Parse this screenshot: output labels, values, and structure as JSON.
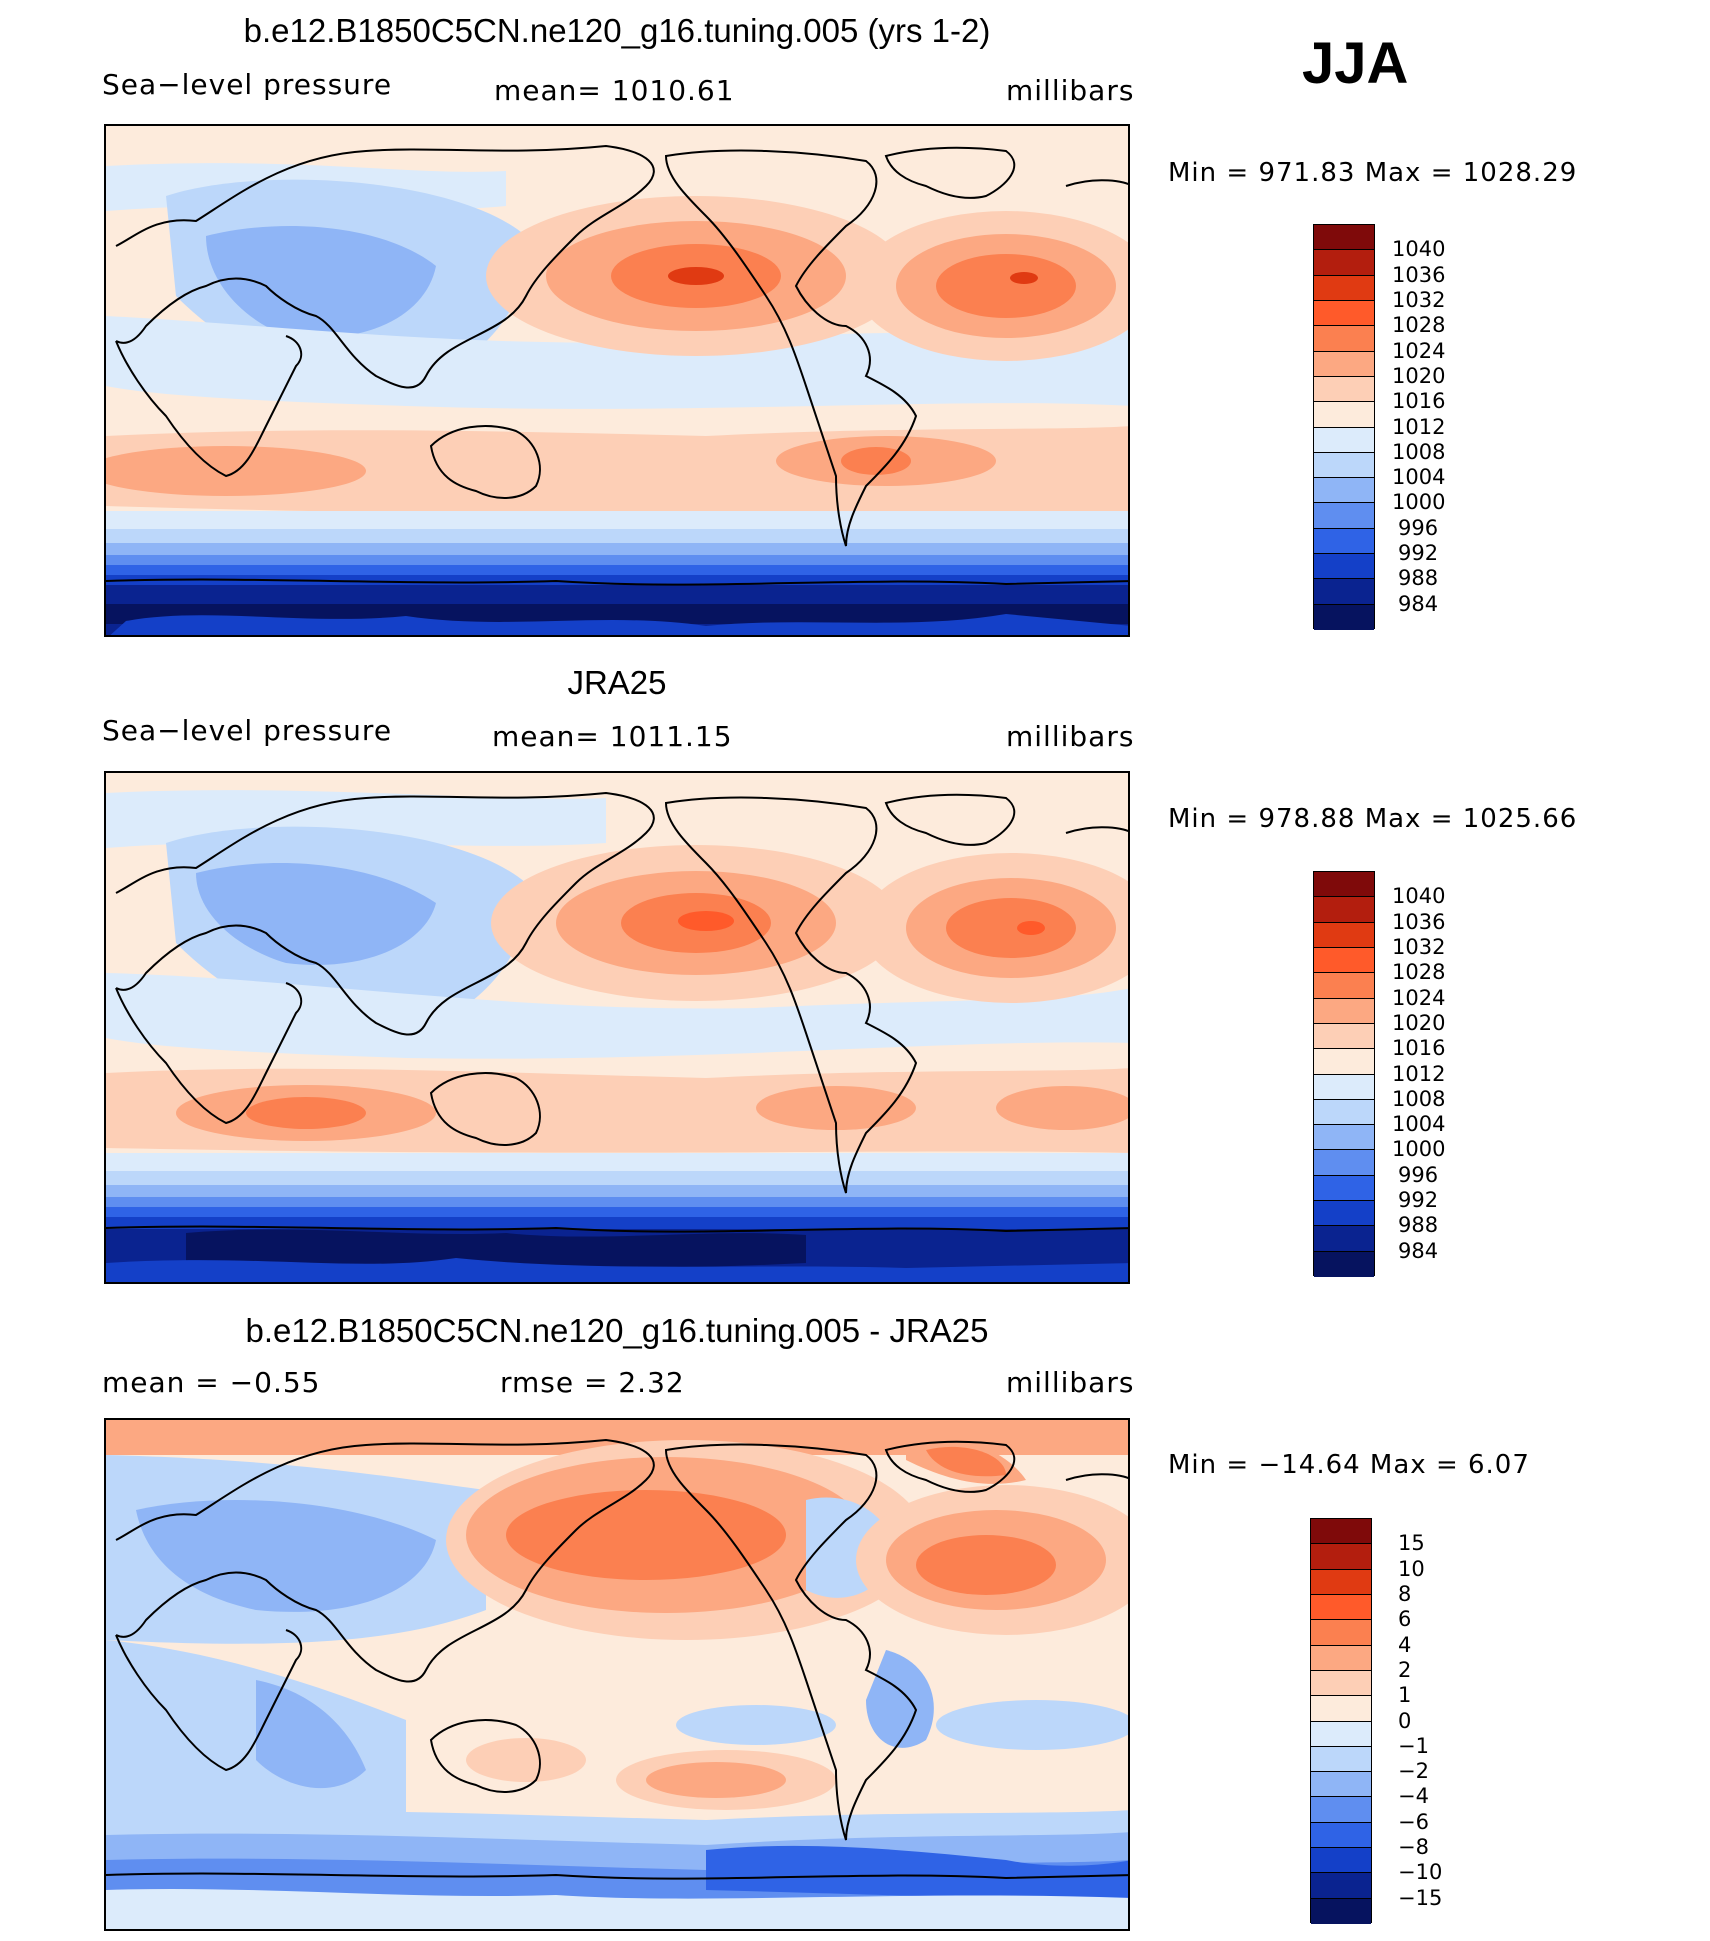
{
  "season": "JJA",
  "panels": [
    {
      "title": "b.e12.B1850C5CN.ne120_g16.tuning.005 (yrs 1-2)",
      "left_label": "Sea−level pressure",
      "center_label": "mean=  1010.61",
      "units": "millibars",
      "minmax": "Min  =  971.83  Max  =  1028.29"
    },
    {
      "title": "JRA25",
      "left_label": "Sea−level pressure",
      "center_label": "mean=  1011.15",
      "units": "millibars",
      "minmax": "Min  =  978.88  Max  =  1025.66"
    },
    {
      "title": "b.e12.B1850C5CN.ne120_g16.tuning.005 - JRA25",
      "left_label": "mean  =    −0.55",
      "center_label": "rmse  =     2.32",
      "units": "millibars",
      "minmax": "Min  =  −14.64  Max  =      6.07"
    }
  ],
  "colorbar_abs": {
    "labels": [
      "1040",
      "1036",
      "1032",
      "1028",
      "1024",
      "1020",
      "1016",
      "1012",
      "1008",
      "1004",
      "1000",
      "996",
      "992",
      "988",
      "984"
    ],
    "colors": [
      "#7f0a0a",
      "#b31e0e",
      "#e03a12",
      "#ff5a2a",
      "#fb8050",
      "#fca882",
      "#fdcfb6",
      "#fdebdc",
      "#dcebfb",
      "#bcd7fa",
      "#8fb5f6",
      "#5f8ef0",
      "#2f63e6",
      "#1440c8",
      "#0a2390",
      "#06135f"
    ]
  },
  "colorbar_diff": {
    "labels": [
      "15",
      "10",
      "8",
      "6",
      "4",
      "2",
      "1",
      "0",
      "−1",
      "−2",
      "−4",
      "−6",
      "−8",
      "−10",
      "−15"
    ],
    "colors": [
      "#7f0a0a",
      "#b31e0e",
      "#e03a12",
      "#ff5a2a",
      "#fb8050",
      "#fca882",
      "#fdcfb6",
      "#fdebdc",
      "#dcebfb",
      "#bcd7fa",
      "#8fb5f6",
      "#5f8ef0",
      "#2f63e6",
      "#1440c8",
      "#0a2390",
      "#06135f"
    ]
  }
}
